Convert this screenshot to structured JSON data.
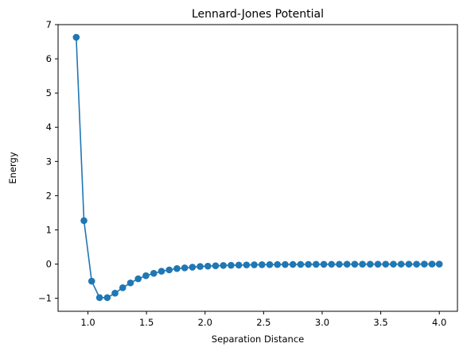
{
  "chart_data": {
    "type": "line",
    "title": "Lennard-Jones Potential",
    "xlabel": "Separation Distance",
    "ylabel": "Energy",
    "xlim": [
      0.745,
      4.155
    ],
    "ylim": [
      -1.38,
      7.0
    ],
    "xticks": [
      1.0,
      1.5,
      2.0,
      2.5,
      3.0,
      3.5,
      4.0
    ],
    "xtick_labels": [
      "1.0",
      "1.5",
      "2.0",
      "2.5",
      "3.0",
      "3.5",
      "4.0"
    ],
    "yticks": [
      -1,
      0,
      1,
      2,
      3,
      4,
      5,
      6,
      7
    ],
    "ytick_labels": [
      "−1",
      "0",
      "1",
      "2",
      "3",
      "4",
      "5",
      "6",
      "7"
    ],
    "grid": false,
    "color": "#1f77b4",
    "marker": "circle",
    "series": [
      {
        "x": [
          0.9,
          0.966,
          1.032,
          1.099,
          1.165,
          1.231,
          1.297,
          1.363,
          1.429,
          1.495,
          1.562,
          1.628,
          1.694,
          1.76,
          1.826,
          1.892,
          1.958,
          2.024,
          2.09,
          2.156,
          2.222,
          2.288,
          2.354,
          2.42,
          2.486,
          2.552,
          2.618,
          2.684,
          2.75,
          2.816,
          2.882,
          2.948,
          3.014,
          3.08,
          3.146,
          3.212,
          3.278,
          3.344,
          3.41,
          3.476,
          3.542,
          3.608,
          3.674,
          3.74,
          3.806,
          3.872,
          3.938,
          4.0
        ],
        "y": [
          6.63,
          1.27,
          -0.5,
          -0.98,
          -0.98,
          -0.85,
          -0.69,
          -0.55,
          -0.43,
          -0.34,
          -0.27,
          -0.21,
          -0.17,
          -0.13,
          -0.11,
          -0.09,
          -0.07,
          -0.06,
          -0.05,
          -0.04,
          -0.035,
          -0.03,
          -0.025,
          -0.02,
          -0.018,
          -0.015,
          -0.013,
          -0.011,
          -0.01,
          -0.009,
          -0.008,
          -0.007,
          -0.006,
          -0.005,
          -0.005,
          -0.004,
          -0.004,
          -0.003,
          -0.003,
          -0.003,
          -0.002,
          -0.002,
          -0.002,
          -0.002,
          -0.002,
          -0.001,
          -0.001,
          -0.001
        ]
      }
    ]
  }
}
